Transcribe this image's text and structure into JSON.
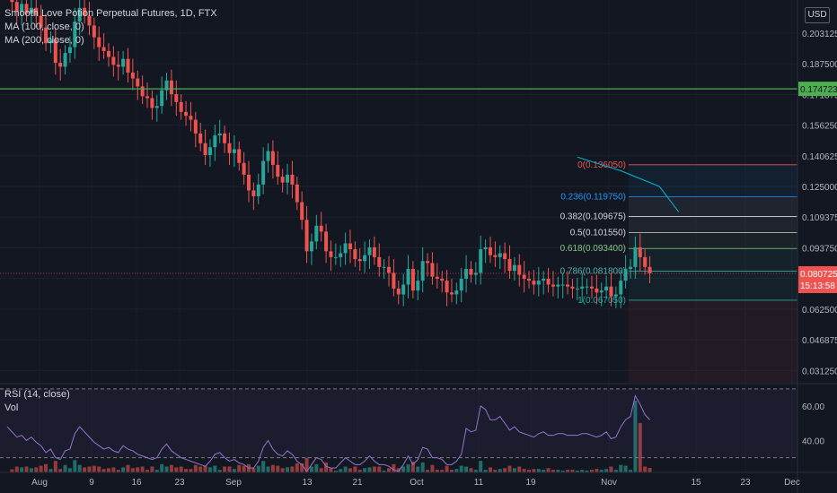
{
  "header": {
    "symbol": "Smooth Love Potion Perpetual Futures, 1D, FTX",
    "ma100": "MA (100, close, 0)",
    "ma200": "MA (200, close, 0)",
    "currency": "USD"
  },
  "rsi_panel": {
    "label": "RSI (14, close)",
    "vol_label": "Vol"
  },
  "badges": {
    "line_price": "0.174723",
    "last_price": "0.080725",
    "countdown": "15:13:58"
  },
  "colors": {
    "up": "#26a69a",
    "down": "#ef5350",
    "ma_line": "#00bcd4",
    "hline": "#4caf50",
    "rsi": "#9575cd",
    "background": "#131722"
  },
  "chart_data": [
    {
      "type": "candlestick",
      "title": "Smooth Love Potion Perpetual Futures, 1D, FTX",
      "y_ticks": [
        "0.203125",
        "0.187500",
        "0.171875",
        "0.156250",
        "0.140625",
        "0.125000",
        "0.109375",
        "0.093750",
        "0.078125",
        "0.062500",
        "0.046875",
        "0.031250"
      ],
      "x_ticks": [
        "Aug",
        "9",
        "16",
        "23",
        "Sep",
        "13",
        "21",
        "Oct",
        "11",
        "19",
        "Nov",
        "15",
        "23",
        "Dec"
      ],
      "ylim": [
        0.025,
        0.22
      ],
      "horizontal_line": 0.174723,
      "close_series": [
        0.2205,
        0.219,
        0.214,
        0.218,
        0.213,
        0.216,
        0.212,
        0.206,
        0.198,
        0.2,
        0.188,
        0.186,
        0.193,
        0.196,
        0.209,
        0.216,
        0.212,
        0.207,
        0.201,
        0.196,
        0.194,
        0.191,
        0.187,
        0.186,
        0.19,
        0.183,
        0.18,
        0.176,
        0.171,
        0.17,
        0.165,
        0.166,
        0.174,
        0.179,
        0.172,
        0.168,
        0.163,
        0.161,
        0.159,
        0.152,
        0.147,
        0.141,
        0.145,
        0.151,
        0.152,
        0.147,
        0.142,
        0.144,
        0.137,
        0.131,
        0.123,
        0.12,
        0.126,
        0.138,
        0.143,
        0.136,
        0.13,
        0.127,
        0.131,
        0.126,
        0.117,
        0.108,
        0.092,
        0.097,
        0.105,
        0.102,
        0.092,
        0.089,
        0.089,
        0.091,
        0.096,
        0.093,
        0.088,
        0.087,
        0.09,
        0.094,
        0.089,
        0.084,
        0.084,
        0.081,
        0.073,
        0.07,
        0.075,
        0.083,
        0.072,
        0.077,
        0.087,
        0.086,
        0.079,
        0.078,
        0.077,
        0.071,
        0.07,
        0.072,
        0.078,
        0.083,
        0.08,
        0.081,
        0.093,
        0.094,
        0.09,
        0.089,
        0.091,
        0.088,
        0.082,
        0.085,
        0.08,
        0.078,
        0.077,
        0.075,
        0.077,
        0.078,
        0.075,
        0.074,
        0.075,
        0.075,
        0.074,
        0.073,
        0.073,
        0.074,
        0.074,
        0.073,
        0.071,
        0.072,
        0.074,
        0.069,
        0.07,
        0.077,
        0.083,
        0.084,
        0.094,
        0.089,
        0.084,
        0.080725
      ],
      "fib_levels": [
        {
          "label": "0(0.136050)",
          "value": 0.13605
        },
        {
          "label": "0.236(0.119750)",
          "value": 0.11975
        },
        {
          "label": "0.382(0.109675)",
          "value": 0.109675
        },
        {
          "label": "0.5(0.101550)",
          "value": 0.10155
        },
        {
          "label": "0.618(0.093400)",
          "value": 0.0934
        },
        {
          "label": "0.786(0.081800)",
          "value": 0.0818
        },
        {
          "label": "1(0.067050)",
          "value": 0.06705
        }
      ],
      "ma_line": [
        [
          118,
          0.14
        ],
        [
          127,
          0.133
        ],
        [
          135,
          0.125
        ],
        [
          139,
          0.112
        ]
      ]
    },
    {
      "type": "line",
      "title": "RSI (14, close)",
      "y_ticks": [
        "60.00",
        "40.00"
      ],
      "ylim": [
        22,
        72
      ],
      "bands": [
        30,
        70
      ],
      "values": [
        48,
        45,
        42,
        43,
        40,
        42,
        39,
        37,
        33,
        35,
        30,
        29,
        34,
        35,
        44,
        48,
        45,
        42,
        39,
        37,
        35,
        36,
        34,
        33,
        37,
        35,
        34,
        32,
        31,
        30,
        29,
        30,
        35,
        38,
        34,
        32,
        30,
        29,
        28,
        27,
        26,
        25,
        28,
        32,
        33,
        30,
        28,
        29,
        27,
        26,
        24,
        24,
        28,
        36,
        40,
        35,
        32,
        31,
        34,
        32,
        28,
        26,
        22,
        26,
        30,
        29,
        25,
        24,
        24,
        27,
        30,
        28,
        26,
        26,
        28,
        31,
        28,
        26,
        26,
        25,
        23,
        22,
        26,
        31,
        26,
        29,
        36,
        35,
        30,
        30,
        29,
        26,
        26,
        28,
        32,
        47,
        45,
        46,
        60,
        58,
        52,
        52,
        54,
        50,
        46,
        48,
        45,
        44,
        43,
        42,
        44,
        45,
        43,
        43,
        44,
        44,
        43,
        43,
        43,
        44,
        44,
        43,
        42,
        43,
        45,
        41,
        42,
        48,
        52,
        54,
        66,
        61,
        55,
        52
      ]
    }
  ]
}
